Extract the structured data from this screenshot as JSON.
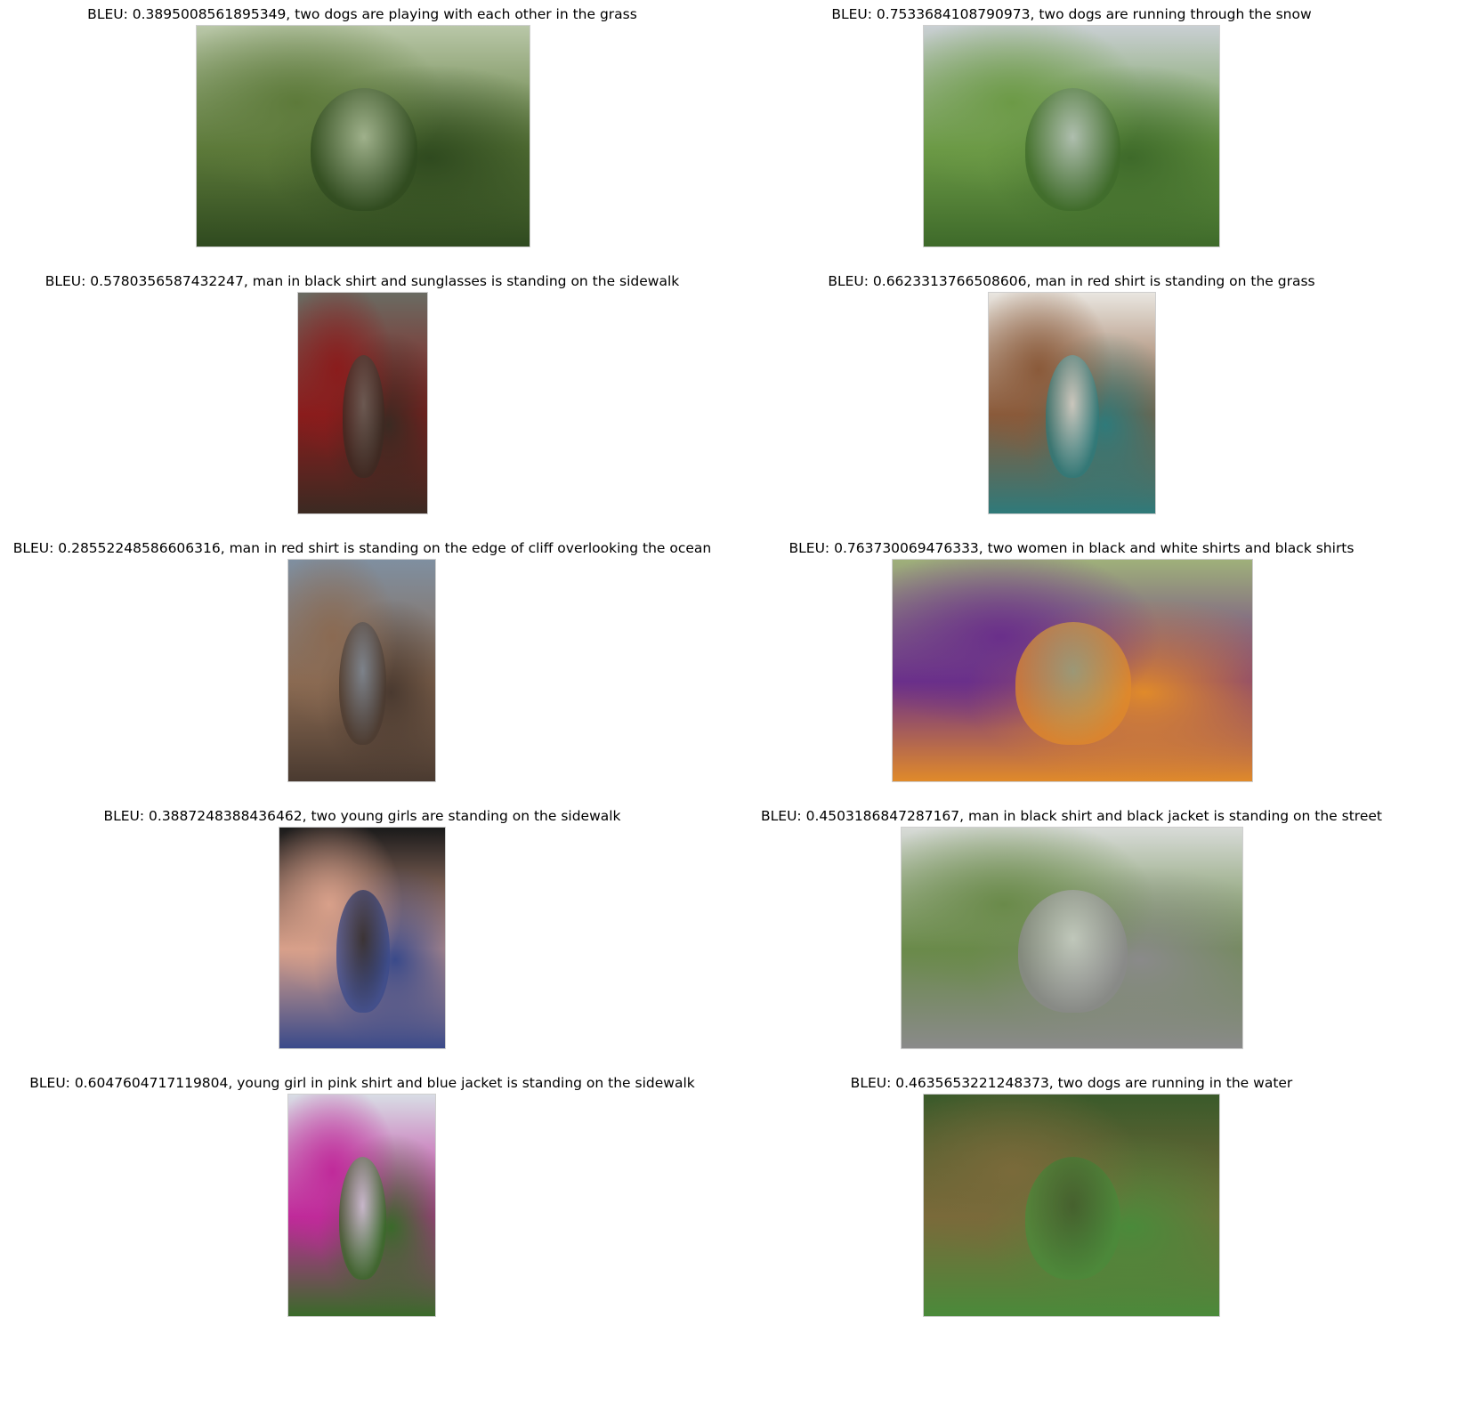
{
  "panels": [
    {
      "caption": "BLEU: 0.3895008561895349, two dogs are playing with each other in the grass",
      "image": "dog-and-woman-on-park-bench",
      "palette": [
        "#b9c7a8",
        "#5d7a3a",
        "#2f4a1f"
      ]
    },
    {
      "caption": "BLEU: 0.7533684108790973, two dogs are running through the snow",
      "image": "two-dogs-running-on-path",
      "palette": [
        "#c9cfd3",
        "#6c9a46",
        "#3e6a2a"
      ]
    },
    {
      "caption": "BLEU: 0.5780356587432247, man in black shirt and sunglasses is standing on the sidewalk",
      "image": "man-in-red-leather-suit",
      "palette": [
        "#6a6b62",
        "#8a1c1c",
        "#3b2a22"
      ]
    },
    {
      "caption": "BLEU: 0.6623313766508606, man in red shirt is standing on the grass",
      "image": "dog-on-playground-slide",
      "palette": [
        "#e9e6e0",
        "#8a5a3a",
        "#2f7a7a"
      ]
    },
    {
      "caption": "BLEU: 0.28552248586606316, man in red shirt is standing on the edge of cliff overlooking the ocean",
      "image": "hikers-in-canyon",
      "palette": [
        "#7f8fa0",
        "#8a6a52",
        "#4a3a30"
      ]
    },
    {
      "caption": "BLEU: 0.763730069476333, two women in black and white shirts and black shirts",
      "image": "two-women-with-sunglasses",
      "palette": [
        "#9fb07a",
        "#6a2f8a",
        "#e08a2a"
      ]
    },
    {
      "caption": "BLEU: 0.3887248388436462, two young girls are standing on the sidewalk",
      "image": "child-with-green-glasses",
      "palette": [
        "#1a1a1a",
        "#d8a08a",
        "#3a4a8a"
      ]
    },
    {
      "caption": "BLEU: 0.4503186847287167, man in black shirt and black jacket is standing on the street",
      "image": "runner-near-fire-truck",
      "palette": [
        "#d8dbd8",
        "#6a8a4a",
        "#8a8a8a"
      ]
    },
    {
      "caption": "BLEU: 0.6047604717119804, young girl in pink shirt and blue jacket is standing on the sidewalk",
      "image": "girl-in-pink-skirt",
      "palette": [
        "#d8dde5",
        "#c02a9a",
        "#3a6a2a"
      ]
    },
    {
      "caption": "BLEU: 0.4635653221248373, two dogs are running in the water",
      "image": "dog-in-stream",
      "palette": [
        "#3a5a2a",
        "#7a6a3a",
        "#4a8a3a"
      ]
    }
  ]
}
